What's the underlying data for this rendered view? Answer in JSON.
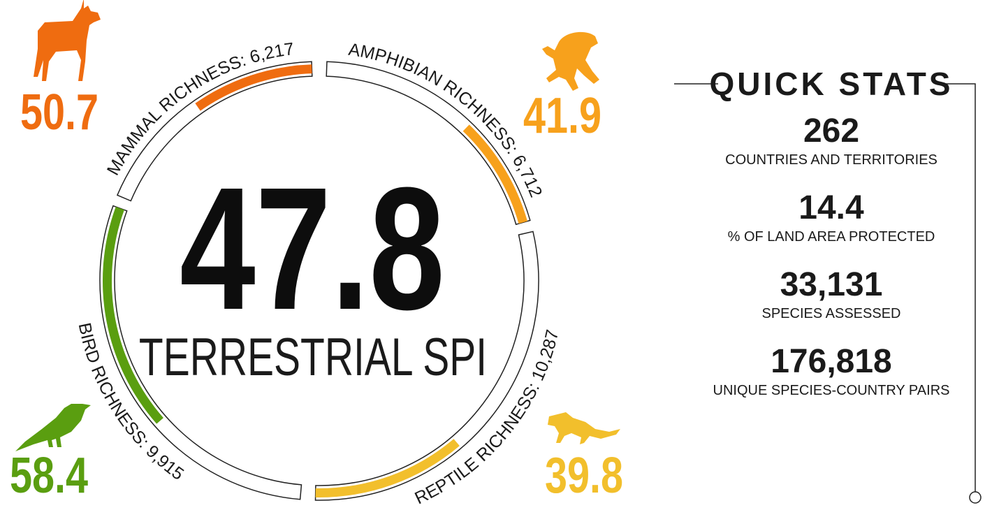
{
  "center": {
    "value": 47.8,
    "label": "TERRESTRIAL SPI"
  },
  "groups": [
    {
      "name": "MAMMAL RICHNESS: 6,217",
      "score": 50.7,
      "color": "#ef6c10"
    },
    {
      "name": "AMPHIBIAN RICHNESS: 6,712",
      "score": 41.9,
      "color": "#f7a11c"
    },
    {
      "name": "REPTILE RICHNESS: 10,287",
      "score": 39.8,
      "color": "#f2bf2c"
    },
    {
      "name": "BIRD RICHNESS: 9,915",
      "score": 58.4,
      "color": "#5a9e10"
    }
  ],
  "quick_stats": {
    "title": "QUICK STATS",
    "items": [
      {
        "value": "262",
        "label": "COUNTRIES AND TERRITORIES"
      },
      {
        "value": "14.4",
        "label": "% OF LAND AREA PROTECTED"
      },
      {
        "value": "33,131",
        "label": "SPECIES ASSESSED"
      },
      {
        "value": "176,818",
        "label": "UNIQUE SPECIES-COUNTRY PAIRS"
      }
    ]
  }
}
